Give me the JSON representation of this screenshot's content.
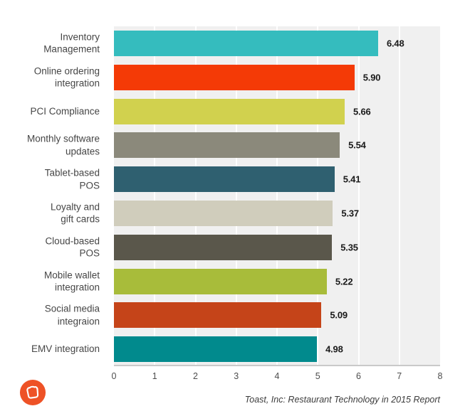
{
  "chart_data": {
    "type": "bar",
    "orientation": "horizontal",
    "title": "",
    "categories": [
      "Inventory\nManagement",
      "Online ordering\nintegration",
      "PCI Compliance",
      "Monthly software\nupdates",
      "Tablet-based\nPOS",
      "Loyalty and\ngift cards",
      "Cloud-based\nPOS",
      "Mobile wallet\nintegration",
      "Social media\nintegraion",
      "EMV integration"
    ],
    "values": [
      6.48,
      5.9,
      5.66,
      5.54,
      5.41,
      5.37,
      5.35,
      5.22,
      5.09,
      4.98
    ],
    "value_labels": [
      "6.48",
      "5.90",
      "5.66",
      "5.54",
      "5.41",
      "5.37",
      "5.35",
      "5.22",
      "5.09",
      "4.98"
    ],
    "bar_colors": [
      "#35bcbe",
      "#f43a06",
      "#d1d14e",
      "#8b897b",
      "#2f6070",
      "#d0cdbc",
      "#5a574b",
      "#a8bc3a",
      "#c54419",
      "#018a8d"
    ],
    "xlim": [
      0,
      8
    ],
    "x_ticks": [
      "0",
      "1",
      "2",
      "3",
      "4",
      "5",
      "6",
      "7",
      "8"
    ],
    "grid": true,
    "legend": false,
    "xlabel": "",
    "ylabel": ""
  },
  "style": {
    "plot_bg": "#f0f0f0",
    "gridline_color": "#ffffff",
    "axis_line_color": "#c9c9c9",
    "value_label_color": "#1a1a1a",
    "category_label_color": "#464646",
    "tick_label_color": "#4d4d4d",
    "source_text_color": "#3c3c3c"
  },
  "footer": {
    "source": "Toast, Inc: Restaurant Technology in 2015 Report",
    "logo_icon": "toast-bread-icon",
    "logo_color": "#ee5226"
  }
}
